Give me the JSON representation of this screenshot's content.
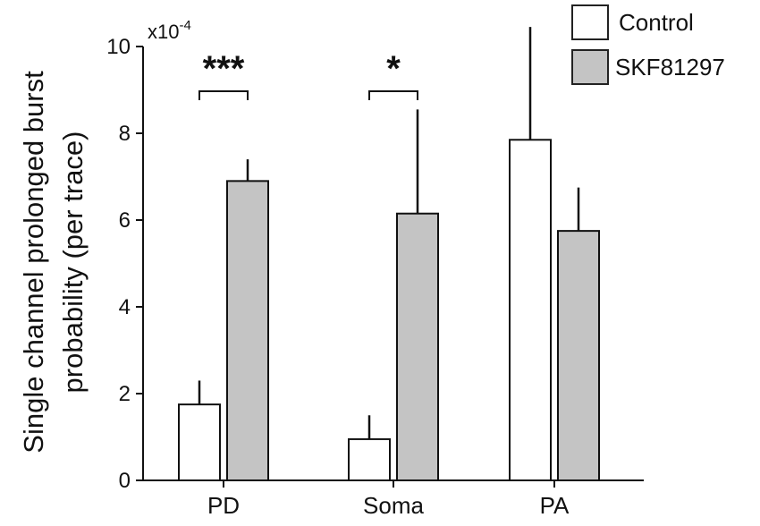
{
  "chart_data": {
    "type": "bar",
    "categories": [
      "PD",
      "Soma",
      "PA"
    ],
    "series": [
      {
        "name": "Control",
        "color": "#ffffff",
        "values": [
          1.75,
          0.95,
          7.85
        ],
        "errors": [
          0.55,
          0.55,
          2.6
        ]
      },
      {
        "name": "SKF81297",
        "color": "#c4c4c4",
        "values": [
          6.9,
          6.15,
          5.75
        ],
        "errors": [
          0.5,
          2.4,
          1.0
        ]
      }
    ],
    "ylabel_line1": "Single channel prolonged burst",
    "ylabel_line2": "probability (per trace)",
    "y_multiplier_base": "x10",
    "y_multiplier_exp": "-4",
    "ylim": [
      0,
      10
    ],
    "yticks": [
      0,
      2,
      4,
      6,
      8,
      10
    ],
    "significance": [
      {
        "category": "PD",
        "label": "***"
      },
      {
        "category": "Soma",
        "label": "*"
      }
    ],
    "legend_position": "top-right"
  }
}
